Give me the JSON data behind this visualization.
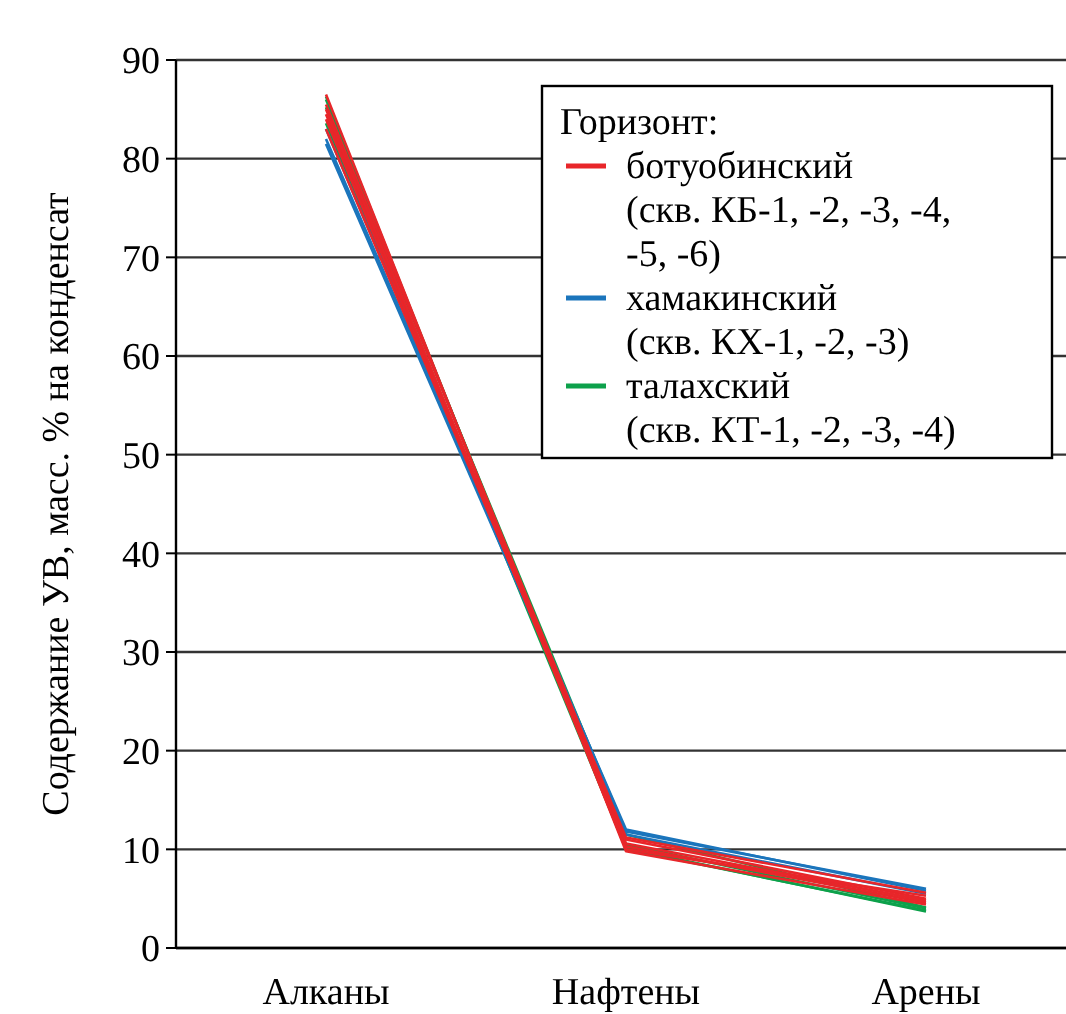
{
  "chart_data": {
    "type": "line",
    "ylabel": "Содержание УВ, масс. % на конденсат",
    "legend_title": "Горизонт:",
    "categories": [
      "Алканы",
      "Нафтены",
      "Арены"
    ],
    "ylim": [
      0,
      90
    ],
    "yticks": [
      0,
      10,
      20,
      30,
      40,
      50,
      60,
      70,
      80,
      90
    ],
    "grid": "y",
    "legend": "top right",
    "marker": "none",
    "line_style": "solid",
    "series": [
      {
        "name": "ботуобинский (скв. КБ-1, -2, -3, -4, -5, -6)",
        "color": "#e8262a",
        "values": [
          85,
          10,
          5.3
        ]
      },
      {
        "color": "#e8262a",
        "values": [
          84,
          10.6,
          4.8
        ]
      },
      {
        "color": "#e8262a",
        "values": [
          86.5,
          9.8,
          4.4
        ]
      },
      {
        "color": "#e8262a",
        "values": [
          83,
          11.2,
          5.6
        ]
      },
      {
        "color": "#e8262a",
        "values": [
          84.5,
          10.3,
          4.6
        ]
      },
      {
        "color": "#e8262a",
        "values": [
          85.5,
          11,
          5
        ]
      },
      {
        "name": "хамакинский (скв. КХ-1, -2, -3)",
        "color": "#1b75bc",
        "values": [
          82,
          12,
          5.8
        ]
      },
      {
        "color": "#1b75bc",
        "values": [
          81.5,
          11.5,
          5.5
        ]
      },
      {
        "color": "#1b75bc",
        "values": [
          83,
          11.8,
          6
        ]
      },
      {
        "name": "талахский (скв. КТ-1, -2, -3, -4)",
        "color": "#0da14b",
        "values": [
          86,
          10.5,
          4
        ]
      },
      {
        "color": "#0da14b",
        "values": [
          85.2,
          11.5,
          4.1
        ]
      },
      {
        "color": "#0da14b",
        "values": [
          86.3,
          10,
          3.8
        ]
      },
      {
        "color": "#0da14b",
        "values": [
          83.6,
          10.1,
          3.7
        ]
      }
    ]
  }
}
